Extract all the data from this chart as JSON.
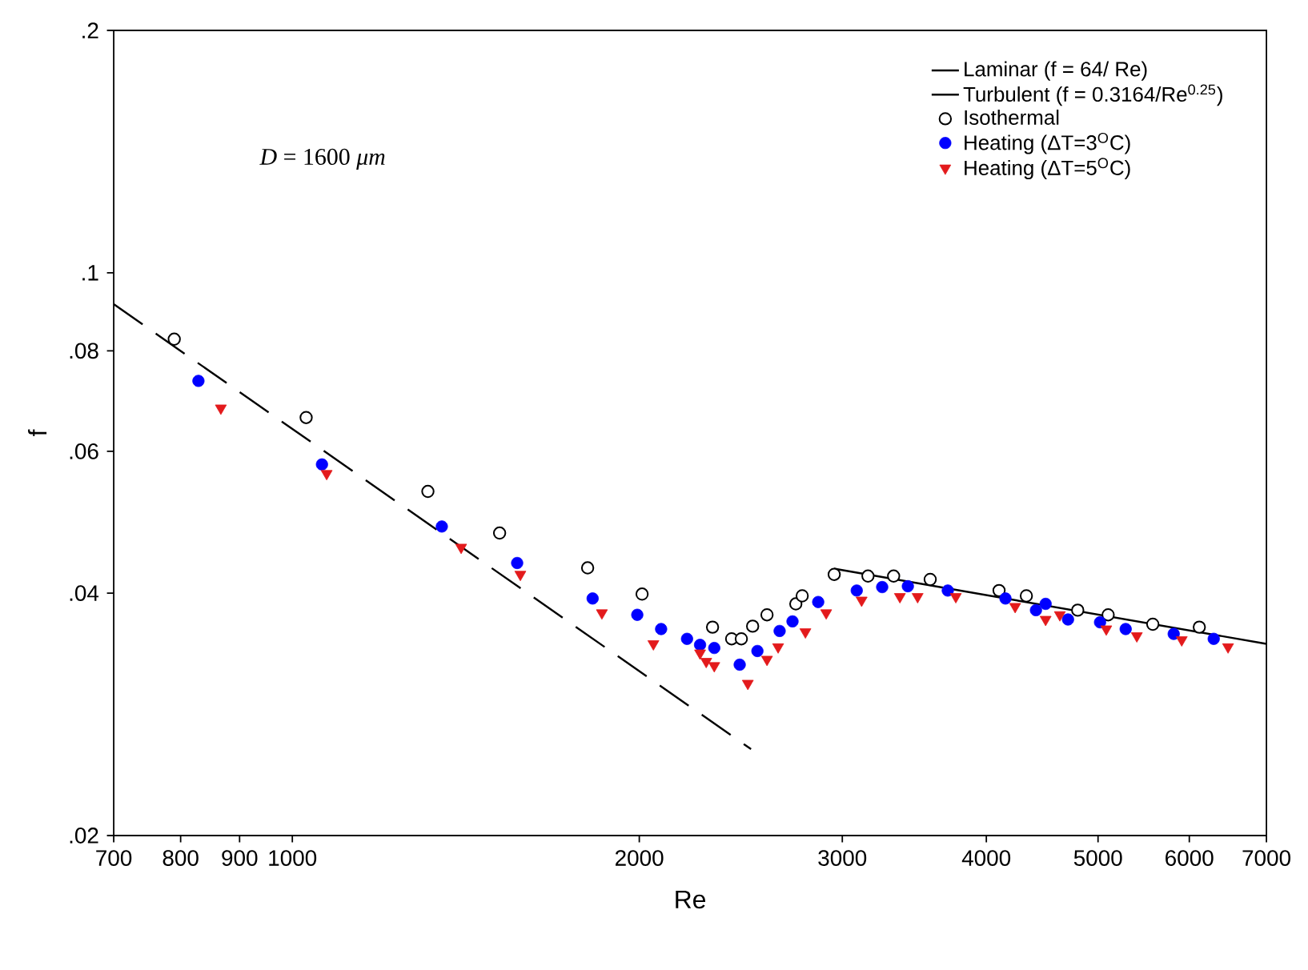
{
  "chart_data": {
    "type": "scatter",
    "xlabel": "Re",
    "ylabel": "f",
    "log": "xy",
    "xlim": [
      700,
      7000
    ],
    "ylim": [
      0.02,
      0.2
    ],
    "xticks": [
      700,
      800,
      900,
      1000,
      2000,
      3000,
      4000,
      5000,
      6000,
      7000
    ],
    "yticks": [
      {
        "value": 0.02,
        "label": ".02"
      },
      {
        "value": 0.04,
        "label": ".04"
      },
      {
        "value": 0.06,
        "label": ".06"
      },
      {
        "value": 0.08,
        "label": ".08"
      },
      {
        "value": 0.1,
        "label": ".1"
      },
      {
        "value": 0.2,
        "label": ".2"
      }
    ],
    "grid": false,
    "legend": "top right",
    "annotations": [
      "*D* = 1600 *μm*"
    ],
    "series": [
      {
        "name": "Laminar (f = 64/ Re)",
        "type": "line",
        "line_style": "dashed",
        "marker": "none",
        "color": "#000000",
        "x": [
          700,
          2500
        ],
        "values": [
          0.0914,
          0.0256
        ]
      },
      {
        "name": "Turbulent (f = 0.3164/Re$^{0.25}$)",
        "type": "line",
        "line_style": "solid",
        "marker": "none",
        "color": "#000000",
        "x": [
          2950,
          7000
        ],
        "values": [
          0.0429,
          0.0346
        ]
      },
      {
        "name": "Isothermal",
        "marker": "circle",
        "color": "#000000",
        "x": [
          790,
          1028,
          1311,
          1513,
          1804,
          2011,
          2315,
          2405,
          2452,
          2508,
          2581,
          2734,
          2769,
          2952,
          3158,
          3324,
          3576,
          4103,
          4333,
          4801,
          5102,
          5578,
          6121
        ],
        "values": [
          0.0827,
          0.0661,
          0.0535,
          0.0475,
          0.043,
          0.0399,
          0.0363,
          0.0351,
          0.0351,
          0.0364,
          0.0376,
          0.0388,
          0.0397,
          0.0422,
          0.042,
          0.042,
          0.0416,
          0.0403,
          0.0397,
          0.0381,
          0.0376,
          0.0366,
          0.0363
        ]
      },
      {
        "name": "Heating (ΔT=3$^{O}$C)",
        "marker": "circle",
        "color": "#0000ff",
        "x": [
          829,
          1061,
          1348,
          1567,
          1822,
          1992,
          2089,
          2200,
          2258,
          2323,
          2444,
          2532,
          2647,
          2716,
          2859,
          3088,
          3249,
          3420,
          3704,
          4156,
          4417,
          4503,
          4709,
          5020,
          5284,
          5816,
          6300
        ],
        "values": [
          0.0734,
          0.0578,
          0.0484,
          0.0436,
          0.0394,
          0.0376,
          0.0361,
          0.0351,
          0.0345,
          0.0342,
          0.0326,
          0.0339,
          0.0359,
          0.0369,
          0.039,
          0.0403,
          0.0407,
          0.0408,
          0.0403,
          0.0394,
          0.0381,
          0.0388,
          0.0371,
          0.0368,
          0.0361,
          0.0356,
          0.0351
        ]
      },
      {
        "name": "Heating (ΔT=5$^{O}$C)",
        "marker": "triangle",
        "color": "#e31a1c",
        "x": [
          867,
          1071,
          1401,
          1577,
          1856,
          2057,
          2258,
          2286,
          2323,
          2484,
          2581,
          2639,
          2787,
          2905,
          3118,
          3366,
          3487,
          3764,
          4237,
          4503,
          4633,
          5083,
          5403,
          5910,
          6483
        ],
        "values": [
          0.0679,
          0.0563,
          0.0456,
          0.0422,
          0.0378,
          0.0346,
          0.0337,
          0.0329,
          0.0325,
          0.0309,
          0.0331,
          0.0343,
          0.0358,
          0.0378,
          0.0392,
          0.0396,
          0.0396,
          0.0396,
          0.0385,
          0.0371,
          0.0376,
          0.0361,
          0.0354,
          0.035,
          0.0343
        ]
      }
    ]
  }
}
